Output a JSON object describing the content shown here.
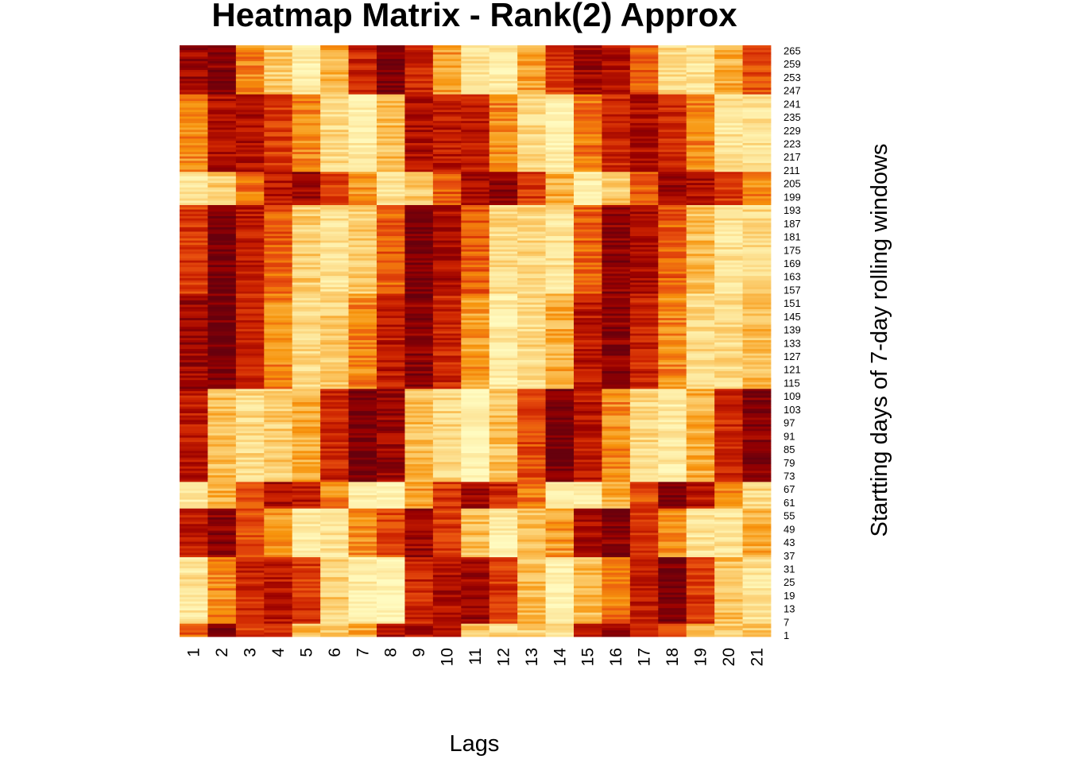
{
  "chart_data": {
    "type": "heatmap",
    "title": "Heatmap Matrix - Rank(2) Approx",
    "xlabel": "Lags",
    "ylabel": "Startting days of 7-day rolling windows",
    "x_categories": [
      "1",
      "2",
      "3",
      "4",
      "5",
      "6",
      "7",
      "8",
      "9",
      "10",
      "11",
      "12",
      "13",
      "14",
      "15",
      "16",
      "17",
      "18",
      "19",
      "20",
      "21"
    ],
    "y_tick_labels": [
      "1",
      "7",
      "13",
      "19",
      "25",
      "31",
      "37",
      "43",
      "49",
      "55",
      "61",
      "67",
      "73",
      "79",
      "85",
      "91",
      "97",
      "103",
      "109",
      "115",
      "121",
      "127",
      "133",
      "139",
      "145",
      "151",
      "157",
      "163",
      "169",
      "175",
      "181",
      "187",
      "193",
      "199",
      "205",
      "211",
      "217",
      "223",
      "229",
      "235",
      "241",
      "247",
      "253",
      "259",
      "265"
    ],
    "n_rows": 267,
    "colormap": [
      "#67000d",
      "#990000",
      "#cc2200",
      "#e8500f",
      "#f7940c",
      "#fbc560",
      "#fde9a0",
      "#fffbc0"
    ],
    "segments": [
      {
        "start": 1,
        "end": 6,
        "values": [
          0.45,
          0.05,
          0.35,
          0.3,
          0.7,
          0.75,
          0.65,
          0.2,
          0.2,
          0.25,
          0.7,
          0.8,
          0.75,
          0.8,
          0.2,
          0.15,
          0.3,
          0.35,
          0.7,
          0.75,
          0.75
        ]
      },
      {
        "start": 7,
        "end": 36,
        "values": [
          0.85,
          0.55,
          0.3,
          0.25,
          0.35,
          0.75,
          0.9,
          0.95,
          0.3,
          0.2,
          0.15,
          0.35,
          0.7,
          0.95,
          0.7,
          0.5,
          0.25,
          0.05,
          0.35,
          0.7,
          0.85
        ]
      },
      {
        "start": 37,
        "end": 58,
        "values": [
          0.25,
          0.1,
          0.4,
          0.6,
          0.9,
          0.85,
          0.55,
          0.4,
          0.15,
          0.35,
          0.7,
          0.9,
          0.7,
          0.6,
          0.2,
          0.1,
          0.35,
          0.55,
          0.85,
          0.85,
          0.65
        ]
      },
      {
        "start": 59,
        "end": 70,
        "values": [
          0.9,
          0.65,
          0.4,
          0.2,
          0.25,
          0.55,
          0.9,
          0.95,
          0.6,
          0.35,
          0.15,
          0.3,
          0.5,
          0.9,
          0.9,
          0.65,
          0.4,
          0.05,
          0.25,
          0.55,
          0.8
        ]
      },
      {
        "start": 71,
        "end": 112,
        "values": [
          0.25,
          0.7,
          0.8,
          0.75,
          0.65,
          0.3,
          0.05,
          0.15,
          0.7,
          0.8,
          0.95,
          0.7,
          0.4,
          0.05,
          0.25,
          0.55,
          0.8,
          0.9,
          0.65,
          0.3,
          0.1
        ]
      },
      {
        "start": 113,
        "end": 155,
        "values": [
          0.15,
          0.05,
          0.3,
          0.55,
          0.8,
          0.75,
          0.55,
          0.25,
          0.1,
          0.3,
          0.6,
          0.9,
          0.8,
          0.65,
          0.25,
          0.1,
          0.3,
          0.55,
          0.8,
          0.8,
          0.7
        ]
      },
      {
        "start": 156,
        "end": 195,
        "values": [
          0.35,
          0.05,
          0.25,
          0.45,
          0.75,
          0.85,
          0.75,
          0.45,
          0.05,
          0.2,
          0.45,
          0.8,
          0.8,
          0.85,
          0.45,
          0.1,
          0.2,
          0.45,
          0.7,
          0.85,
          0.8
        ]
      },
      {
        "start": 196,
        "end": 210,
        "values": [
          0.85,
          0.75,
          0.5,
          0.25,
          0.15,
          0.35,
          0.6,
          0.85,
          0.75,
          0.45,
          0.2,
          0.1,
          0.35,
          0.65,
          0.9,
          0.75,
          0.45,
          0.15,
          0.2,
          0.35,
          0.55
        ]
      },
      {
        "start": 211,
        "end": 245,
        "values": [
          0.55,
          0.2,
          0.2,
          0.35,
          0.55,
          0.8,
          0.9,
          0.7,
          0.2,
          0.25,
          0.25,
          0.55,
          0.8,
          0.9,
          0.5,
          0.3,
          0.2,
          0.3,
          0.55,
          0.85,
          0.85
        ]
      },
      {
        "start": 246,
        "end": 267,
        "values": [
          0.15,
          0.1,
          0.55,
          0.75,
          0.9,
          0.65,
          0.3,
          0.05,
          0.3,
          0.6,
          0.85,
          0.9,
          0.6,
          0.35,
          0.15,
          0.2,
          0.45,
          0.8,
          0.85,
          0.65,
          0.4
        ]
      }
    ]
  }
}
